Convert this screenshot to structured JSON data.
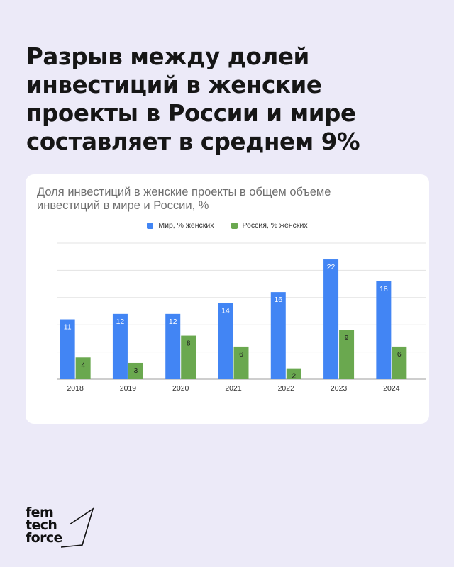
{
  "headline": {
    "lines": [
      "Разрыв между долей",
      "инвестиций в женские",
      "проекты в России и мире",
      "составляет в среднем 9%"
    ]
  },
  "chart_data": {
    "type": "bar",
    "title_lines": [
      "Доля инвестиций в женские проекты в общем объеме",
      "инвестиций в мире и России, %"
    ],
    "categories": [
      "2018",
      "2019",
      "2020",
      "2021",
      "2022",
      "2023",
      "2024"
    ],
    "series": [
      {
        "name": "Мир, % женских",
        "color": "#4285f4",
        "values": [
          11,
          12,
          12,
          14,
          16,
          22,
          18
        ]
      },
      {
        "name": "Россия, % женских",
        "color": "#6aa84f",
        "values": [
          4,
          3,
          8,
          6,
          2,
          9,
          6
        ]
      }
    ],
    "ylim": [
      0,
      25
    ],
    "grid": true,
    "legend_position": "top-center",
    "data_labels": true
  },
  "brand": {
    "logo_lines": [
      "fem",
      "tech",
      "force"
    ]
  }
}
